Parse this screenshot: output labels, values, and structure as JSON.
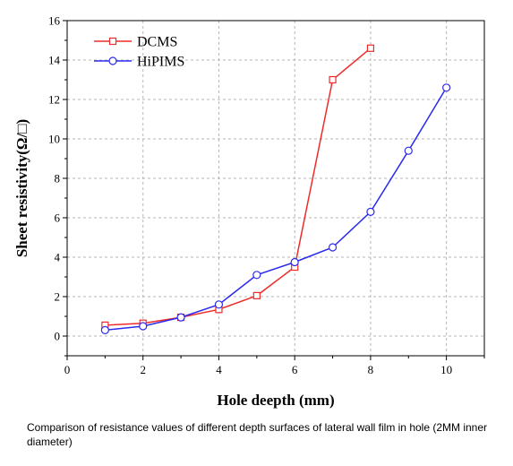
{
  "chart_data": {
    "type": "line",
    "xlabel": "Hole deepth (mm)",
    "ylabel": "Sheet resistivity(Ω/□)",
    "xlim": [
      0,
      11
    ],
    "ylim": [
      -1,
      16
    ],
    "xticks": [
      0,
      2,
      4,
      6,
      8,
      10
    ],
    "yticks": [
      0,
      2,
      4,
      6,
      8,
      10,
      12,
      14,
      16
    ],
    "grid": true,
    "legend_position": "top-left",
    "series": [
      {
        "name": "DCMS",
        "color": "#ee2b2b",
        "marker": "square",
        "x": [
          1,
          2,
          3,
          4,
          5,
          6,
          7,
          8
        ],
        "y": [
          0.55,
          0.65,
          0.95,
          1.35,
          2.05,
          3.5,
          13.0,
          14.6
        ]
      },
      {
        "name": "HiPIMS",
        "color": "#2b2bee",
        "marker": "circle",
        "x": [
          1,
          2,
          3,
          4,
          5,
          6,
          7,
          8,
          9,
          10
        ],
        "y": [
          0.3,
          0.5,
          0.95,
          1.6,
          3.1,
          3.75,
          4.5,
          6.3,
          9.4,
          12.6
        ]
      }
    ]
  },
  "caption": "Comparison of resistance values of different depth surfaces of lateral wall film in hole (2MM inner diameter)"
}
